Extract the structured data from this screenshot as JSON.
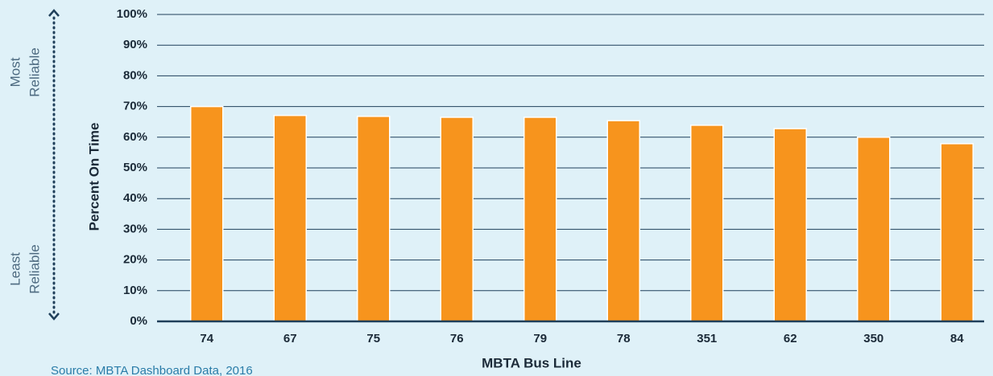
{
  "chart_data": {
    "type": "bar",
    "y_label": "Percent On Time",
    "x_label": "MBTA Bus Line",
    "source": "Source: MBTA Dashboard Data, 2016",
    "top_label": [
      "Most",
      "Reliable"
    ],
    "bottom_label": [
      "Least",
      "Reliable"
    ],
    "categories": [
      "74",
      "67",
      "75",
      "76",
      "79",
      "78",
      "351",
      "62",
      "350",
      "84"
    ],
    "values": [
      70,
      67.1,
      66.8,
      66.5,
      66.5,
      65.4,
      63.9,
      62.8,
      60,
      57.9
    ],
    "color": "#f7941d",
    "ylim": [
      0,
      100
    ],
    "yticks": [
      {
        "value": 0,
        "label": "0%"
      },
      {
        "value": 10,
        "label": "10%"
      },
      {
        "value": 20,
        "label": "20%"
      },
      {
        "value": 30,
        "label": "30%"
      },
      {
        "value": 40,
        "label": "40%"
      },
      {
        "value": 50,
        "label": "50%"
      },
      {
        "value": 60,
        "label": "60%"
      },
      {
        "value": 70,
        "label": "70%"
      },
      {
        "value": 80,
        "label": "80%"
      },
      {
        "value": 90,
        "label": "90%"
      },
      {
        "value": 100,
        "label": "100%"
      }
    ],
    "grid": true
  }
}
